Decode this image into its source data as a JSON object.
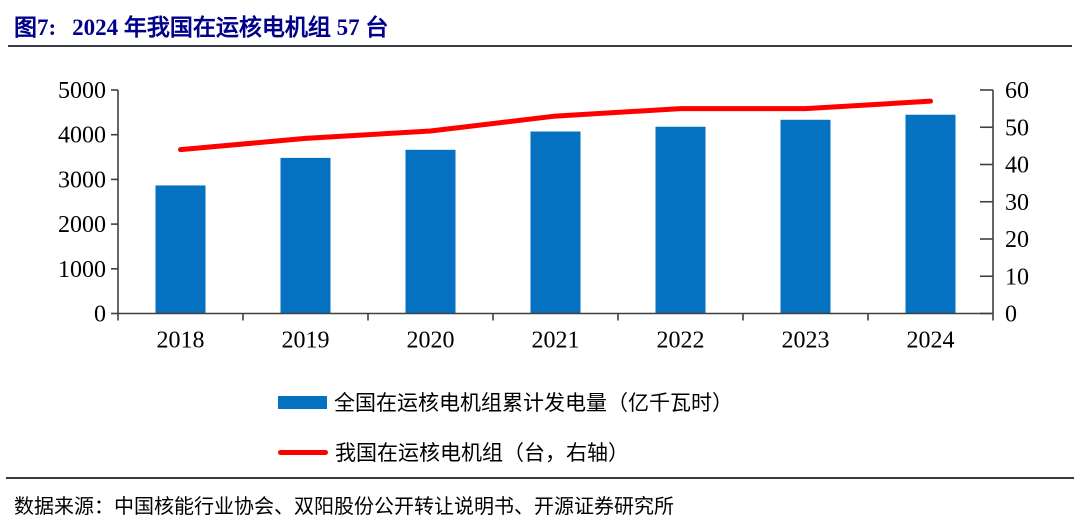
{
  "title": {
    "fig_label": "图7:",
    "text": "2024 年我国在运核电机组 57 台"
  },
  "source_line": "数据来源：中国核能行业协会、双阳股份公开转让说明书、开源证券研究所",
  "colors": {
    "bar": "#0571C1",
    "line": "#FF0000",
    "title": "#00008B",
    "axis": "#404040"
  },
  "chart_data": {
    "type": "bar",
    "subtype": "bar-line-combo",
    "categories": [
      "2018",
      "2019",
      "2020",
      "2021",
      "2022",
      "2023",
      "2024"
    ],
    "series": [
      {
        "name": "全国在运核电机组累计发电量（亿千瓦时）",
        "type": "bar",
        "axis": "left",
        "color": "#0571C1",
        "values": [
          2865,
          3481,
          3662,
          4071,
          4178,
          4334,
          4447
        ]
      },
      {
        "name": "我国在运核电机组（台，右轴）",
        "type": "line",
        "axis": "right",
        "color": "#FF0000",
        "values": [
          44,
          47,
          49,
          53,
          55,
          55,
          57
        ]
      }
    ],
    "left_axis": {
      "min": 0,
      "max": 5000,
      "step": 1000,
      "tick_labels": [
        "0",
        "1000",
        "2000",
        "3000",
        "4000",
        "5000"
      ]
    },
    "right_axis": {
      "min": 0,
      "max": 60,
      "step": 10,
      "tick_labels": [
        "0",
        "10",
        "20",
        "30",
        "40",
        "50",
        "60"
      ]
    },
    "grid": false,
    "legend_position": "bottom",
    "title": "图7: 2024 年我国在运核电机组 57 台"
  }
}
